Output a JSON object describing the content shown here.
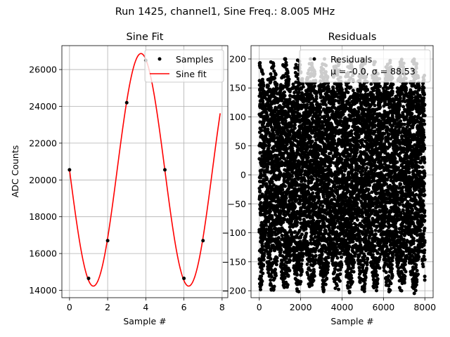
{
  "chart_data": [
    {
      "type": "line+scatter",
      "suptitle": "Run 1425, channel1, Sine Freq.: 8.005 MHz",
      "title": "Sine Fit",
      "xlabel": "Sample #",
      "ylabel": "ADC Counts",
      "xlim": [
        -0.4,
        8.3
      ],
      "ylim": [
        13600,
        27300
      ],
      "xticks": [
        "0",
        "2",
        "4",
        "6",
        "8"
      ],
      "xtick_values": [
        0,
        2,
        4,
        6,
        8
      ],
      "yticks": [
        "14000",
        "16000",
        "18000",
        "20000",
        "22000",
        "24000",
        "26000"
      ],
      "ytick_values": [
        14000,
        16000,
        18000,
        20000,
        22000,
        24000,
        26000
      ],
      "grid": true,
      "legend_position": "top-right",
      "series": [
        {
          "name": "Samples",
          "marker": "dot",
          "color": "#000000",
          "x": [
            0,
            1,
            2,
            3,
            4,
            5,
            6,
            7
          ],
          "y": [
            20550,
            14650,
            16700,
            24200,
            26500,
            20550,
            14650,
            16700
          ]
        },
        {
          "name": "Sine fit",
          "marker": "line",
          "color": "#ff0000",
          "fit": {
            "offset": 20550,
            "amplitude": 6320,
            "cycles_per_sample": 0.2001,
            "phase_at_zero": 3.1416
          },
          "x_range": [
            0,
            7.9
          ]
        }
      ]
    },
    {
      "type": "scatter",
      "title": "Residuals",
      "xlabel": "Sample #",
      "ylabel": "",
      "xlim": [
        -400,
        8400
      ],
      "ylim": [
        -212,
        223
      ],
      "xticks": [
        "0",
        "2000",
        "4000",
        "6000",
        "8000"
      ],
      "xtick_values": [
        0,
        2000,
        4000,
        6000,
        8000
      ],
      "yticks": [
        "−200",
        "−150",
        "−100",
        "−50",
        "0",
        "50",
        "100",
        "150",
        "200"
      ],
      "ytick_values": [
        -200,
        -150,
        -100,
        -50,
        0,
        50,
        100,
        150,
        200
      ],
      "grid": true,
      "legend_position": "top-right",
      "legend": {
        "label": "Residuals",
        "stats": "μ = -0.0, σ = 88.53"
      },
      "series": [
        {
          "name": "Residuals",
          "marker": "dot",
          "color": "#000000",
          "n_points": 8000,
          "mean": -0.0,
          "std": 88.53,
          "min": -205,
          "max": 200,
          "envelope_period_samples": 1250
        }
      ]
    }
  ]
}
